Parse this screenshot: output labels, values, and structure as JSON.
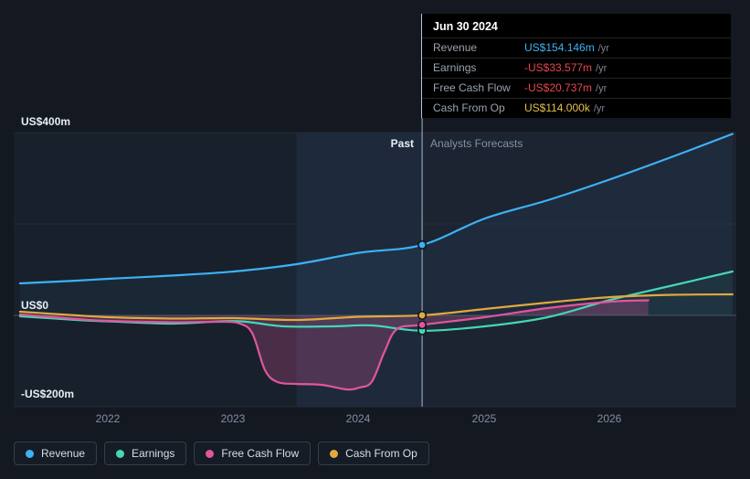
{
  "labels": {
    "past": "Past",
    "forecast": "Analysts Forecasts"
  },
  "tooltip": {
    "date": "Jun 30 2024",
    "rows": [
      {
        "label": "Revenue",
        "value": "US$154.146m",
        "suffix": "/yr",
        "color": "#3eb1f5"
      },
      {
        "label": "Earnings",
        "value": "-US$33.577m",
        "suffix": "/yr",
        "color": "#e5484d"
      },
      {
        "label": "Free Cash Flow",
        "value": "-US$20.737m",
        "suffix": "/yr",
        "color": "#e5484d"
      },
      {
        "label": "Cash From Op",
        "value": "US$114.000k",
        "suffix": "/yr",
        "color": "#e6c04a"
      }
    ]
  },
  "chart_data": {
    "type": "line",
    "y_unit": "US$ millions",
    "x_range": [
      2021.25,
      2027.0
    ],
    "ylim": [
      -200,
      400
    ],
    "gridlines": [
      400,
      200,
      0,
      -200
    ],
    "y_tick_labels": [
      "US$400m",
      "US$0",
      "-US$200m"
    ],
    "y_tick_values": [
      400,
      0,
      -200
    ],
    "x_ticks": [
      "2022",
      "2023",
      "2024",
      "2025",
      "2026"
    ],
    "x_tick_values": [
      2022,
      2023,
      2024,
      2025,
      2026
    ],
    "divider_year": 2024.5,
    "marker_year": 2024.5,
    "highlight_band": [
      2023.5,
      2024.5
    ],
    "legend_position": "bottom-left",
    "series": [
      {
        "name": "Revenue",
        "color": "#3eb1f5",
        "fill_opacity": 0.06,
        "points": [
          [
            2021.3,
            70
          ],
          [
            2021.75,
            76
          ],
          [
            2022,
            80
          ],
          [
            2022.5,
            87
          ],
          [
            2023,
            96
          ],
          [
            2023.5,
            112
          ],
          [
            2024,
            137
          ],
          [
            2024.5,
            154.146
          ],
          [
            2025,
            212
          ],
          [
            2025.5,
            252
          ],
          [
            2026,
            298
          ],
          [
            2026.5,
            348
          ],
          [
            2026.97,
            397
          ]
        ]
      },
      {
        "name": "Earnings",
        "color": "#45d6b5",
        "fill_opacity": 0.05,
        "points": [
          [
            2021.3,
            -2
          ],
          [
            2021.75,
            -10
          ],
          [
            2022,
            -13
          ],
          [
            2022.5,
            -18
          ],
          [
            2022.9,
            -13
          ],
          [
            2023.1,
            -14
          ],
          [
            2023.4,
            -24
          ],
          [
            2023.8,
            -24
          ],
          [
            2024.1,
            -22
          ],
          [
            2024.5,
            -33.577
          ],
          [
            2025,
            -24
          ],
          [
            2025.5,
            -4
          ],
          [
            2026,
            34
          ],
          [
            2026.5,
            66
          ],
          [
            2026.97,
            96
          ]
        ]
      },
      {
        "name": "Free Cash Flow",
        "color": "#e0569f",
        "fill_opacity": 0.25,
        "points": [
          [
            2021.3,
            2
          ],
          [
            2021.75,
            -8
          ],
          [
            2022,
            -12
          ],
          [
            2022.5,
            -15
          ],
          [
            2022.9,
            -14
          ],
          [
            2023.05,
            -18
          ],
          [
            2023.15,
            -40
          ],
          [
            2023.25,
            -120
          ],
          [
            2023.35,
            -146
          ],
          [
            2023.5,
            -150
          ],
          [
            2023.7,
            -152
          ],
          [
            2023.9,
            -162
          ],
          [
            2024.0,
            -158
          ],
          [
            2024.1,
            -145
          ],
          [
            2024.2,
            -80
          ],
          [
            2024.3,
            -30
          ],
          [
            2024.5,
            -20.737
          ],
          [
            2025,
            -4
          ],
          [
            2025.5,
            16
          ],
          [
            2026,
            30
          ],
          [
            2026.3,
            33
          ]
        ]
      },
      {
        "name": "Cash From Op",
        "color": "#e2a93d",
        "fill_opacity": 0,
        "points": [
          [
            2021.3,
            8
          ],
          [
            2021.75,
            0
          ],
          [
            2022,
            -4
          ],
          [
            2022.5,
            -7
          ],
          [
            2023,
            -6
          ],
          [
            2023.5,
            -10
          ],
          [
            2024,
            -3
          ],
          [
            2024.5,
            0.114
          ],
          [
            2025,
            14
          ],
          [
            2025.5,
            28
          ],
          [
            2026,
            40
          ],
          [
            2026.5,
            45
          ],
          [
            2026.97,
            46
          ]
        ]
      }
    ],
    "colors": {
      "background": "#131821",
      "plot_background": "#18202b",
      "gridline": "#222b37",
      "zero_line": "#46525f",
      "divider": "#a9b9cc",
      "highlight_band": "rgba(90,140,210,0.10)"
    }
  }
}
